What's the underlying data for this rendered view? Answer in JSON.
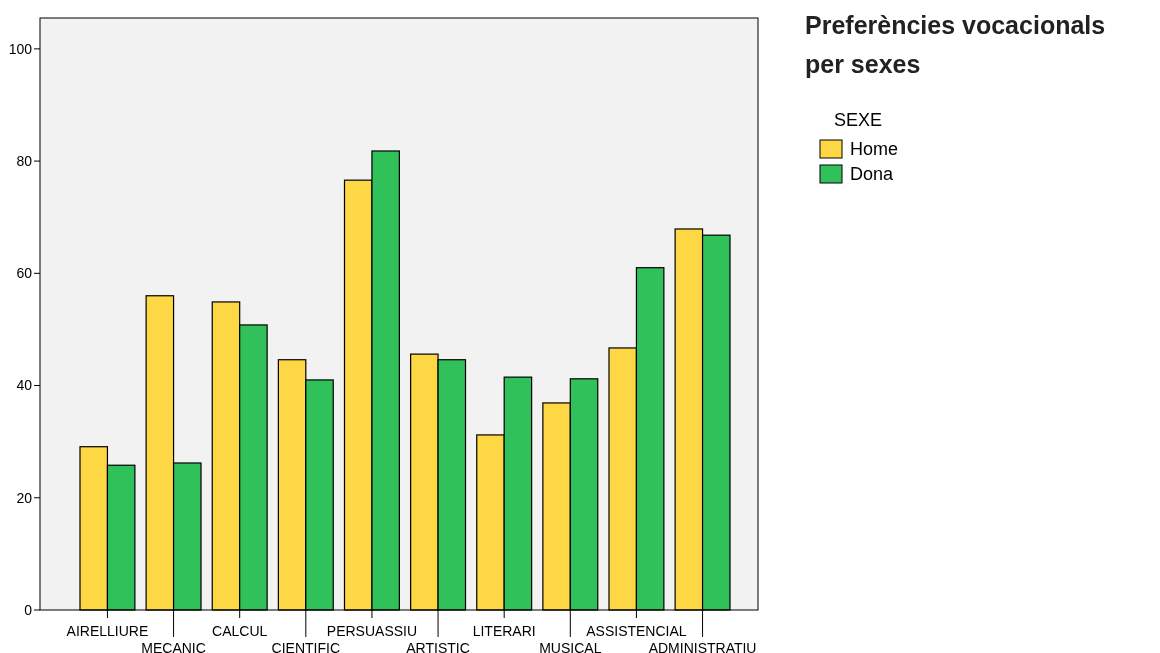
{
  "chart_data": {
    "type": "bar",
    "title": "Preferències vocacionals per sexes",
    "legend_title": "SEXE",
    "legend": "right",
    "categories": [
      "AIRELLIURE",
      "MECANIC",
      "CALCUL",
      "CIENTIFIC",
      "PERSUASSIU",
      "ARTISTIC",
      "LITERARI",
      "MUSICAL",
      "ASSISTENCIAL",
      "ADMINISTRATIU"
    ],
    "series": [
      {
        "name": "Home",
        "color": "#fdd744",
        "values": [
          29.1,
          56.0,
          54.9,
          44.6,
          76.6,
          45.6,
          31.2,
          36.9,
          46.7,
          67.9
        ]
      },
      {
        "name": "Dona",
        "color": "#31c15a",
        "values": [
          25.8,
          26.2,
          50.8,
          41.0,
          81.8,
          44.6,
          41.5,
          41.2,
          61.0,
          66.8
        ]
      }
    ],
    "ylim": [
      0,
      105.5
    ],
    "yticks": [
      0,
      20,
      40,
      60,
      80,
      100
    ],
    "grid": false
  }
}
